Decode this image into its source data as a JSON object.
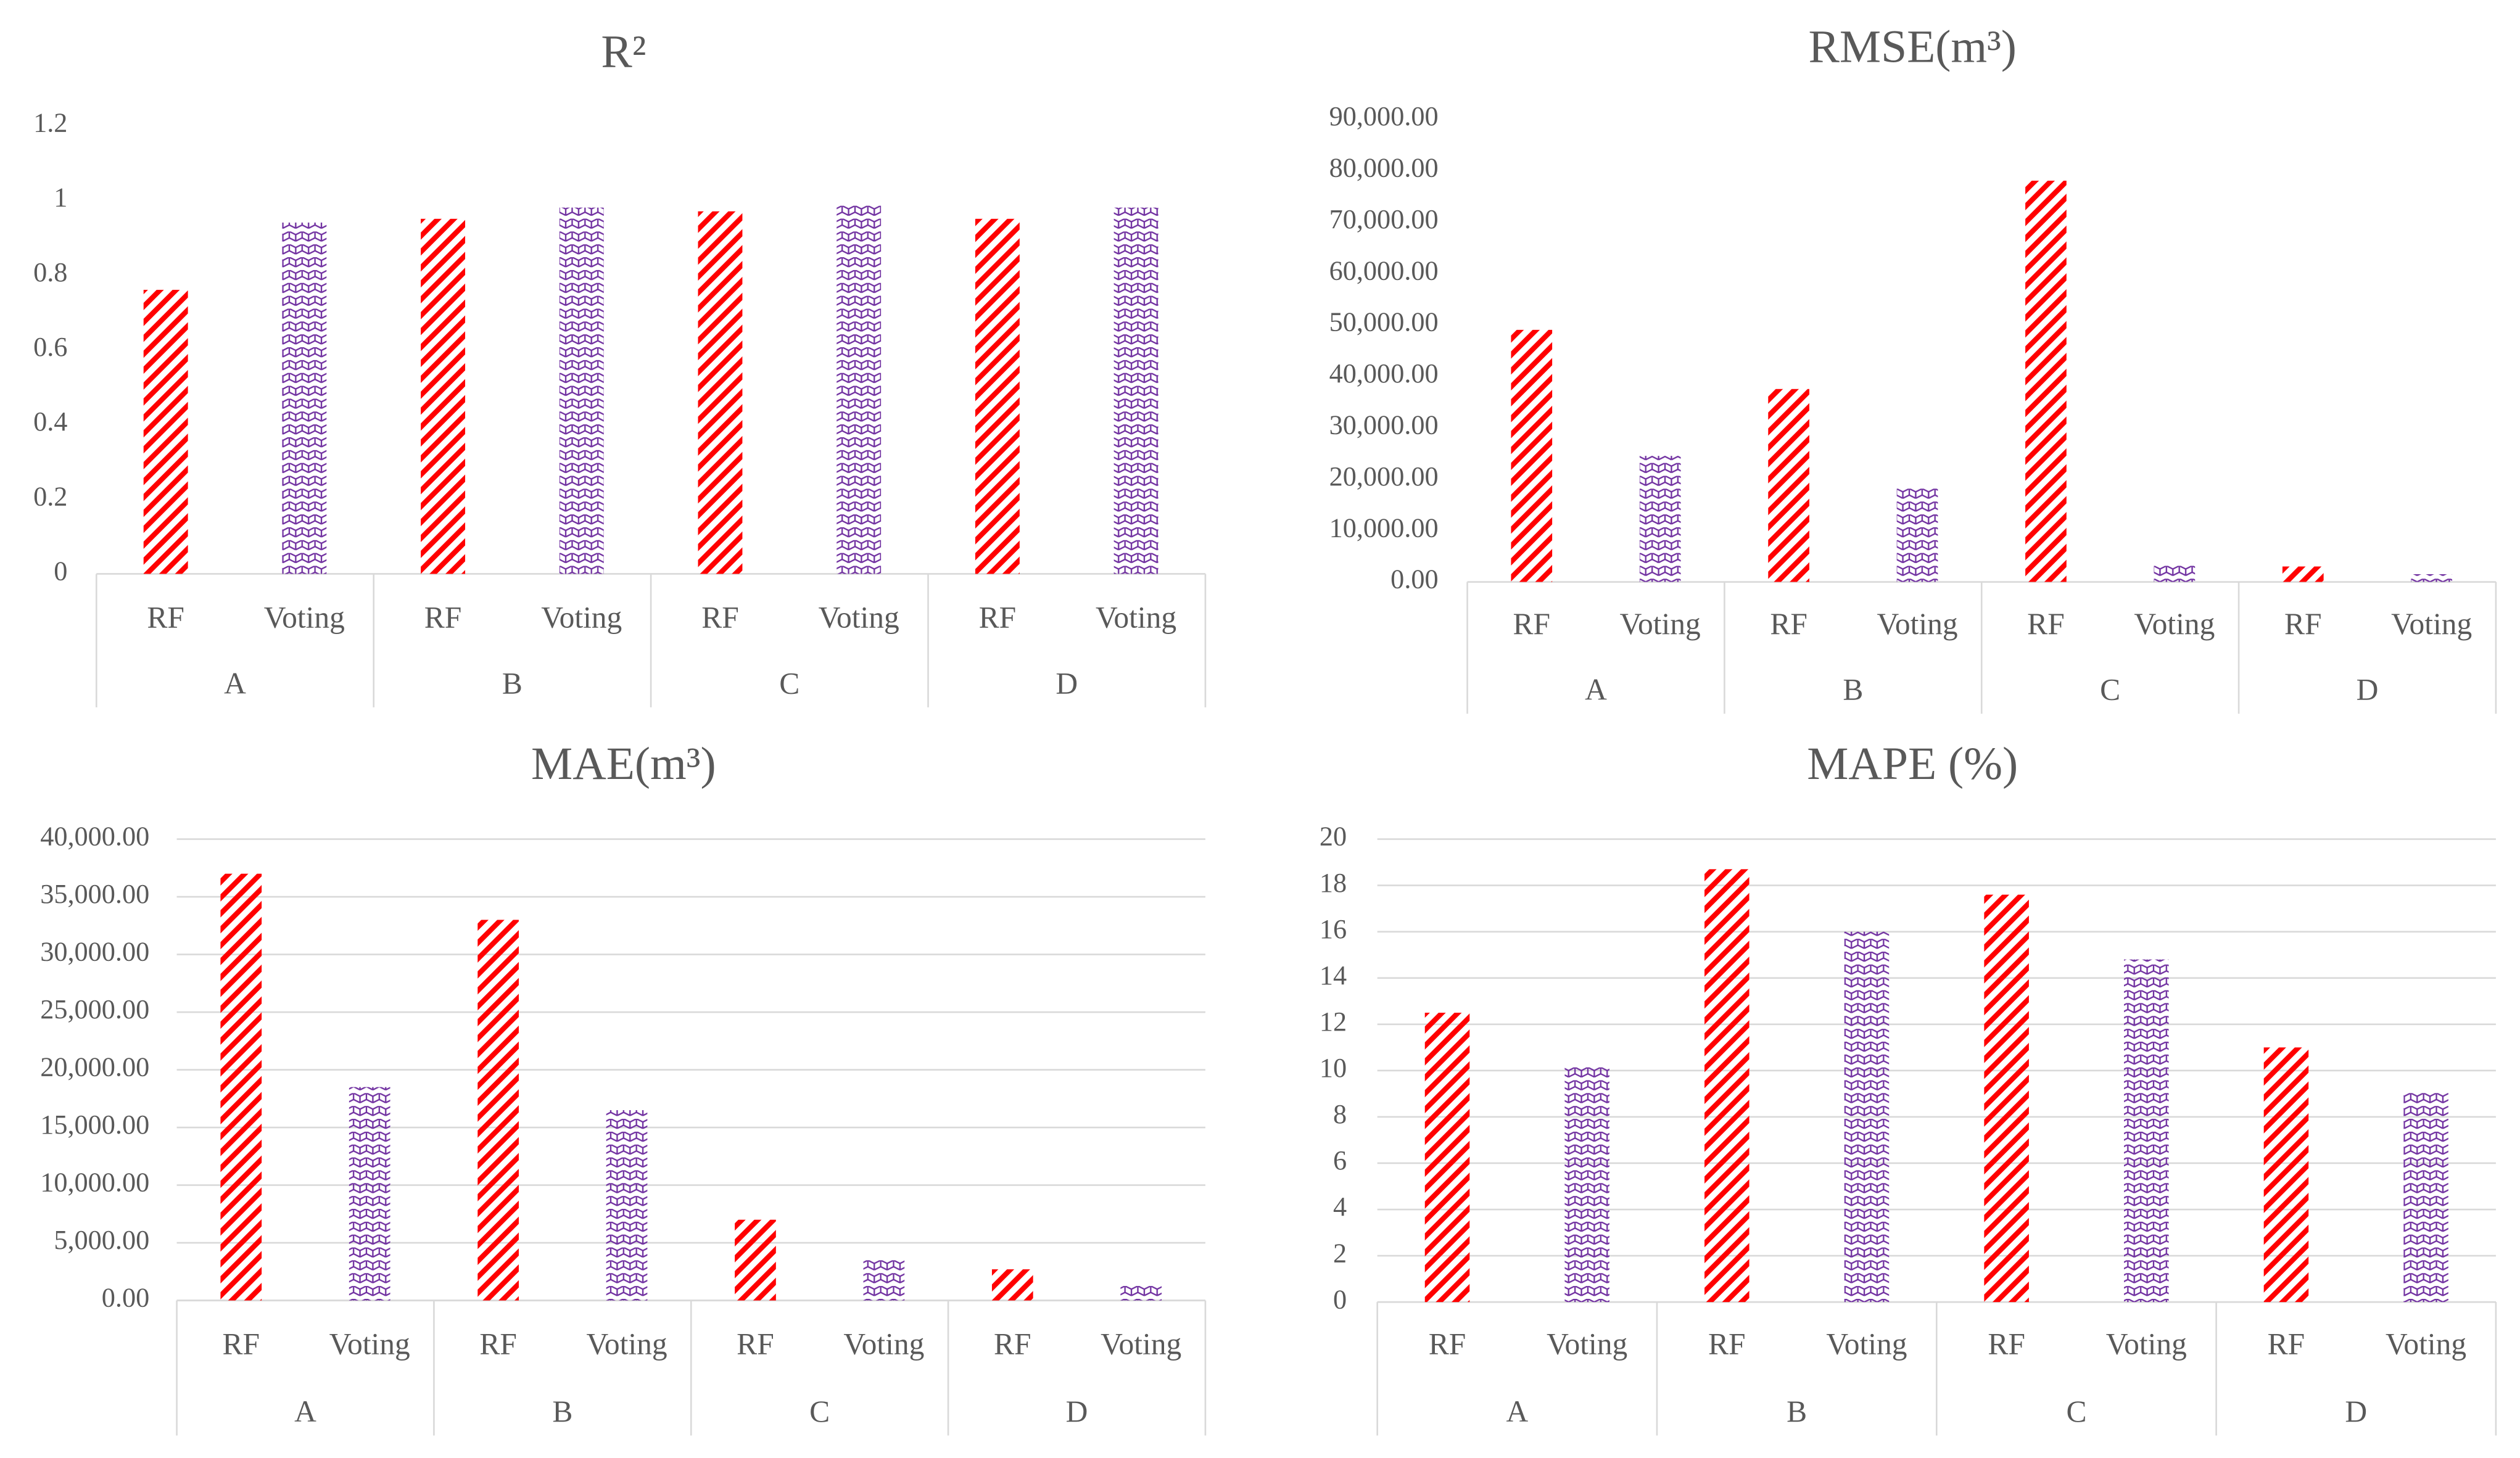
{
  "chart_data": [
    {
      "type": "bar",
      "title": "R²",
      "categories": [
        "A",
        "B",
        "C",
        "D"
      ],
      "series": [
        {
          "name": "RF",
          "color": "#ff0000",
          "hatch": "diagonal",
          "values": [
            0.76,
            0.95,
            0.97,
            0.95
          ]
        },
        {
          "name": "Voting",
          "color": "#7030a0",
          "hatch": "cross",
          "values": [
            0.94,
            0.98,
            0.99,
            0.98
          ]
        }
      ],
      "ylim": [
        0,
        1.2
      ],
      "yticks": [
        0,
        0.2,
        0.4,
        0.6,
        0.8,
        1,
        1.2
      ],
      "grid": false
    },
    {
      "type": "bar",
      "title": "RMSE(m³)",
      "categories": [
        "A",
        "B",
        "C",
        "D"
      ],
      "series": [
        {
          "name": "RF",
          "color": "#ff0000",
          "hatch": "diagonal",
          "values": [
            49000,
            37500,
            78000,
            3000
          ]
        },
        {
          "name": "Voting",
          "color": "#7030a0",
          "hatch": "cross",
          "values": [
            24500,
            18500,
            3500,
            1500
          ]
        }
      ],
      "ylim": [
        0,
        90000
      ],
      "yticks": [
        {
          "value": 0,
          "label": "0.00"
        },
        {
          "value": 10000,
          "label": "10,000.00"
        },
        {
          "value": 20000,
          "label": "20,000.00"
        },
        {
          "value": 30000,
          "label": "30,000.00"
        },
        {
          "value": 40000,
          "label": "40,000.00"
        },
        {
          "value": 50000,
          "label": "50,000.00"
        },
        {
          "value": 60000,
          "label": "60,000.00"
        },
        {
          "value": 70000,
          "label": "70,000.00"
        },
        {
          "value": 80000,
          "label": "80,000.00"
        },
        {
          "value": 90000,
          "label": "90,000.00"
        }
      ],
      "grid": false
    },
    {
      "type": "bar",
      "title": "MAE(m³)",
      "categories": [
        "A",
        "B",
        "C",
        "D"
      ],
      "series": [
        {
          "name": "RF",
          "color": "#ff0000",
          "hatch": "diagonal",
          "values": [
            37000,
            33000,
            7000,
            2700
          ]
        },
        {
          "name": "Voting",
          "color": "#7030a0",
          "hatch": "cross",
          "values": [
            18500,
            16500,
            3500,
            1300
          ]
        }
      ],
      "ylim": [
        0,
        40000
      ],
      "yticks": [
        {
          "value": 0,
          "label": "0.00"
        },
        {
          "value": 5000,
          "label": "5,000.00"
        },
        {
          "value": 10000,
          "label": "10,000.00"
        },
        {
          "value": 15000,
          "label": "15,000.00"
        },
        {
          "value": 20000,
          "label": "20,000.00"
        },
        {
          "value": 25000,
          "label": "25,000.00"
        },
        {
          "value": 30000,
          "label": "30,000.00"
        },
        {
          "value": 35000,
          "label": "35,000.00"
        },
        {
          "value": 40000,
          "label": "40,000.00"
        }
      ],
      "grid": true
    },
    {
      "type": "bar",
      "title": "MAPE (%)",
      "categories": [
        "A",
        "B",
        "C",
        "D"
      ],
      "series": [
        {
          "name": "RF",
          "color": "#ff0000",
          "hatch": "diagonal",
          "values": [
            12.5,
            18.7,
            17.6,
            11
          ]
        },
        {
          "name": "Voting",
          "color": "#7030a0",
          "hatch": "cross",
          "values": [
            10.2,
            16,
            14.8,
            9.1
          ]
        }
      ],
      "ylim": [
        0,
        20
      ],
      "yticks": [
        0,
        2,
        4,
        6,
        8,
        10,
        12,
        14,
        16,
        18,
        20
      ],
      "grid": true
    }
  ]
}
